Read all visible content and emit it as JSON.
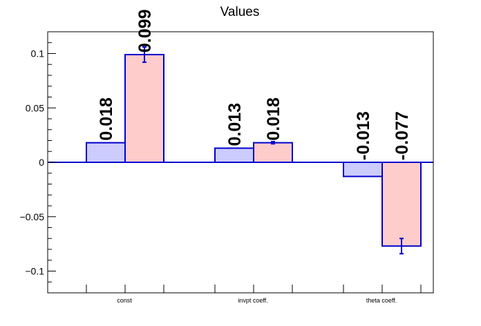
{
  "chart_data": {
    "type": "bar",
    "title": "Values",
    "xlabel": "",
    "ylabel": "",
    "categories": [
      "const",
      "invpt coeff.",
      "theta coeff."
    ],
    "series": [
      {
        "values": [
          0.018,
          0.013,
          -0.013
        ],
        "errors": [
          0.0,
          0.0,
          0.0
        ]
      },
      {
        "values": [
          0.099,
          0.018,
          -0.077
        ],
        "errors": [
          0.007,
          0.001,
          0.007
        ]
      }
    ],
    "data_labels": [
      [
        "0.018",
        "0.013",
        "-0.013"
      ],
      [
        "0.099",
        "0.018",
        "-0.077"
      ]
    ],
    "ylim": [
      -0.12,
      0.12
    ],
    "yticks": [
      -0.1,
      -0.05,
      0,
      0.05,
      0.1
    ],
    "ytick_labels": [
      "−0.1",
      "−0.05",
      "0",
      "0.05",
      "0.1"
    ],
    "grid": false,
    "legend": "none",
    "colors": {
      "series_fill": [
        "#ccccff",
        "#ffcccc"
      ],
      "bar_outline": "#0000cc",
      "axis": "#000000"
    }
  }
}
